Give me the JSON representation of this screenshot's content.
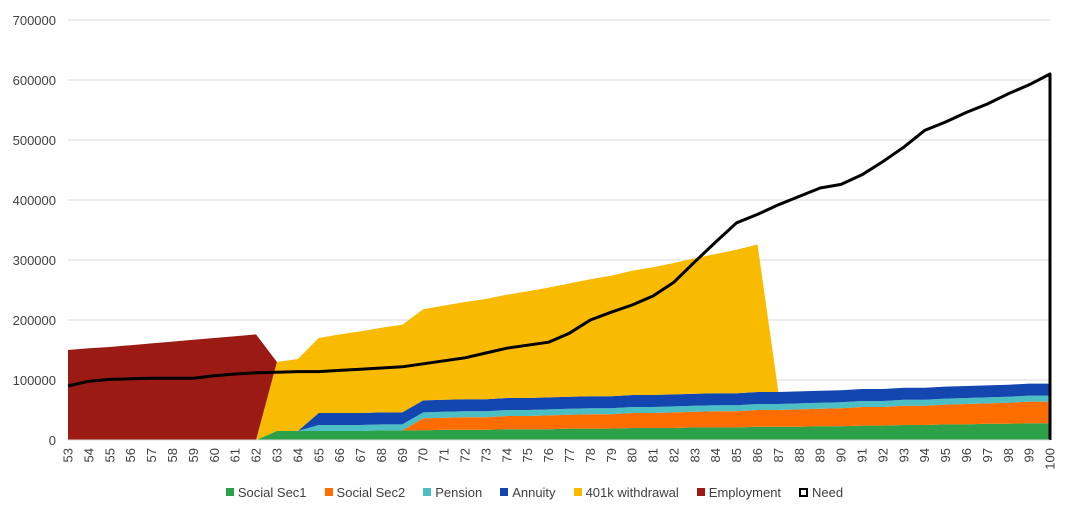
{
  "chart_data": {
    "type": "area",
    "stacked": true,
    "x": [
      53,
      54,
      55,
      56,
      57,
      58,
      59,
      60,
      61,
      62,
      63,
      64,
      65,
      66,
      67,
      68,
      69,
      70,
      71,
      72,
      73,
      74,
      75,
      76,
      77,
      78,
      79,
      80,
      81,
      82,
      83,
      84,
      85,
      86,
      87,
      88,
      89,
      90,
      91,
      92,
      93,
      94,
      95,
      96,
      97,
      98,
      99,
      100
    ],
    "ylim": [
      0,
      700000
    ],
    "yticks": [
      0,
      100000,
      200000,
      300000,
      400000,
      500000,
      600000,
      700000
    ],
    "grid": true,
    "legend_position": "bottom",
    "series": [
      {
        "name": "Social Sec1",
        "color": "#2ca14a",
        "kind": "area",
        "values": [
          0,
          0,
          0,
          0,
          0,
          0,
          0,
          0,
          0,
          0,
          15000,
          15000,
          15000,
          15000,
          15000,
          16000,
          16000,
          16000,
          17000,
          17000,
          17000,
          18000,
          18000,
          18000,
          19000,
          19000,
          19000,
          20000,
          20000,
          20000,
          21000,
          21000,
          21000,
          22000,
          22000,
          22000,
          23000,
          23000,
          24000,
          24000,
          25000,
          25000,
          26000,
          26000,
          27000,
          27000,
          28000,
          28000
        ]
      },
      {
        "name": "Social Sec2",
        "color": "#ff6d00",
        "kind": "area",
        "values": [
          0,
          0,
          0,
          0,
          0,
          0,
          0,
          0,
          0,
          0,
          0,
          0,
          0,
          0,
          0,
          0,
          0,
          20000,
          20000,
          21000,
          21000,
          22000,
          22000,
          23000,
          23000,
          24000,
          24000,
          25000,
          25000,
          26000,
          26000,
          27000,
          27000,
          28000,
          28000,
          29000,
          29000,
          30000,
          31000,
          31000,
          32000,
          32000,
          33000,
          34000,
          34000,
          35000,
          36000,
          36000
        ]
      },
      {
        "name": "Pension",
        "color": "#4bbfc4",
        "kind": "area",
        "values": [
          0,
          0,
          0,
          0,
          0,
          0,
          0,
          0,
          0,
          0,
          0,
          0,
          10000,
          10000,
          10000,
          10000,
          10000,
          10000,
          10000,
          10000,
          10000,
          10000,
          10000,
          10000,
          10000,
          10000,
          10000,
          10000,
          10000,
          10000,
          10000,
          10000,
          10000,
          10000,
          10000,
          10000,
          10000,
          10000,
          10000,
          10000,
          10000,
          10000,
          10000,
          10000,
          10000,
          10000,
          10000,
          10000
        ]
      },
      {
        "name": "Annuity",
        "color": "#1446b0",
        "kind": "area",
        "values": [
          0,
          0,
          0,
          0,
          0,
          0,
          0,
          0,
          0,
          0,
          0,
          0,
          20000,
          20000,
          20000,
          20000,
          20000,
          20000,
          20000,
          20000,
          20000,
          20000,
          20000,
          20000,
          20000,
          20000,
          20000,
          20000,
          20000,
          20000,
          20000,
          20000,
          20000,
          20000,
          20000,
          20000,
          20000,
          20000,
          20000,
          20000,
          20000,
          20000,
          20000,
          20000,
          20000,
          20000,
          20000,
          20000
        ]
      },
      {
        "name": "401k withdrawal",
        "color": "#f8bb00",
        "kind": "area",
        "values": [
          0,
          0,
          0,
          0,
          0,
          0,
          0,
          0,
          0,
          0,
          115000,
          120000,
          125000,
          131000,
          136000,
          141000,
          146000,
          152000,
          157000,
          162000,
          167000,
          172000,
          178000,
          183000,
          189000,
          195000,
          201000,
          207000,
          213000,
          219000,
          226000,
          232000,
          239000,
          246000,
          0,
          0,
          0,
          0,
          0,
          0,
          0,
          0,
          0,
          0,
          0,
          0,
          0,
          0
        ]
      },
      {
        "name": "Employment",
        "color": "#9b1b14",
        "kind": "area",
        "values": [
          150000,
          153000,
          155000,
          158000,
          161000,
          164000,
          167000,
          170000,
          173000,
          176000,
          0,
          0,
          0,
          0,
          0,
          0,
          0,
          0,
          0,
          0,
          0,
          0,
          0,
          0,
          0,
          0,
          0,
          0,
          0,
          0,
          0,
          0,
          0,
          0,
          0,
          0,
          0,
          0,
          0,
          0,
          0,
          0,
          0,
          0,
          0,
          0,
          0,
          0
        ]
      },
      {
        "name": "Need",
        "color": "#000000",
        "kind": "line",
        "values": [
          90000,
          98000,
          101000,
          102000,
          103000,
          103000,
          103000,
          107000,
          110000,
          112000,
          113000,
          114000,
          114000,
          116000,
          118000,
          120000,
          122000,
          127000,
          132000,
          137000,
          145000,
          153000,
          158000,
          163000,
          178000,
          200000,
          213000,
          225000,
          240000,
          263000,
          297000,
          330000,
          362000,
          376000,
          392000,
          406000,
          420000,
          426000,
          442000,
          464000,
          488000,
          516000,
          530000,
          546000,
          560000,
          577000,
          592000,
          610000
        ]
      }
    ]
  }
}
